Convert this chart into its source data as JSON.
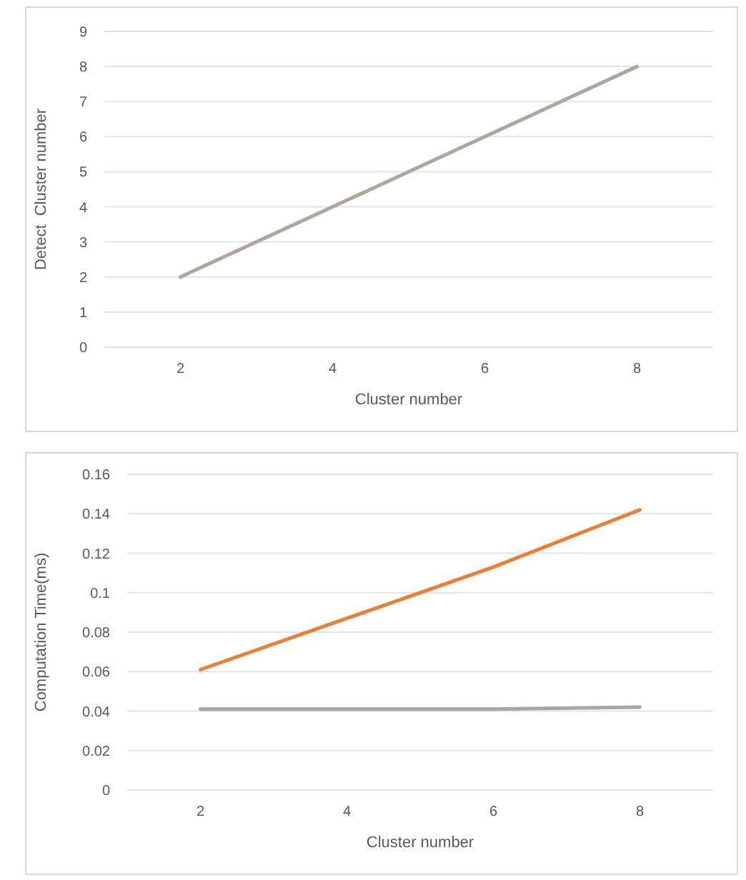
{
  "chart_data": [
    {
      "type": "line",
      "categories": [
        "2",
        "4",
        "6",
        "8"
      ],
      "xlabel": "Cluster number",
      "ylabel": "Detect  Cluster number",
      "ylim": [
        0,
        9
      ],
      "yticks": [
        0,
        1,
        2,
        3,
        4,
        5,
        6,
        7,
        8,
        9
      ],
      "grid": "y",
      "marker": "none",
      "line_style": "solid",
      "series": [
        {
          "color": "#b0a59b",
          "values": [
            2,
            4,
            6,
            8
          ]
        }
      ]
    },
    {
      "type": "line",
      "categories": [
        "2",
        "4",
        "6",
        "8"
      ],
      "xlabel": "Cluster number",
      "ylabel": "Computation Time(ms)",
      "ylim": [
        0,
        0.16
      ],
      "yticks": [
        0,
        0.02,
        0.04,
        0.06,
        0.08,
        0.1,
        0.12,
        0.14,
        0.16
      ],
      "grid": "y",
      "marker": "none",
      "line_style": "solid",
      "series": [
        {
          "color": "#ed7d31",
          "values": [
            0.061,
            0.087,
            0.113,
            0.142
          ]
        },
        {
          "color": "#a5a5a5",
          "values": [
            0.041,
            0.041,
            0.041,
            0.042
          ]
        }
      ]
    }
  ]
}
